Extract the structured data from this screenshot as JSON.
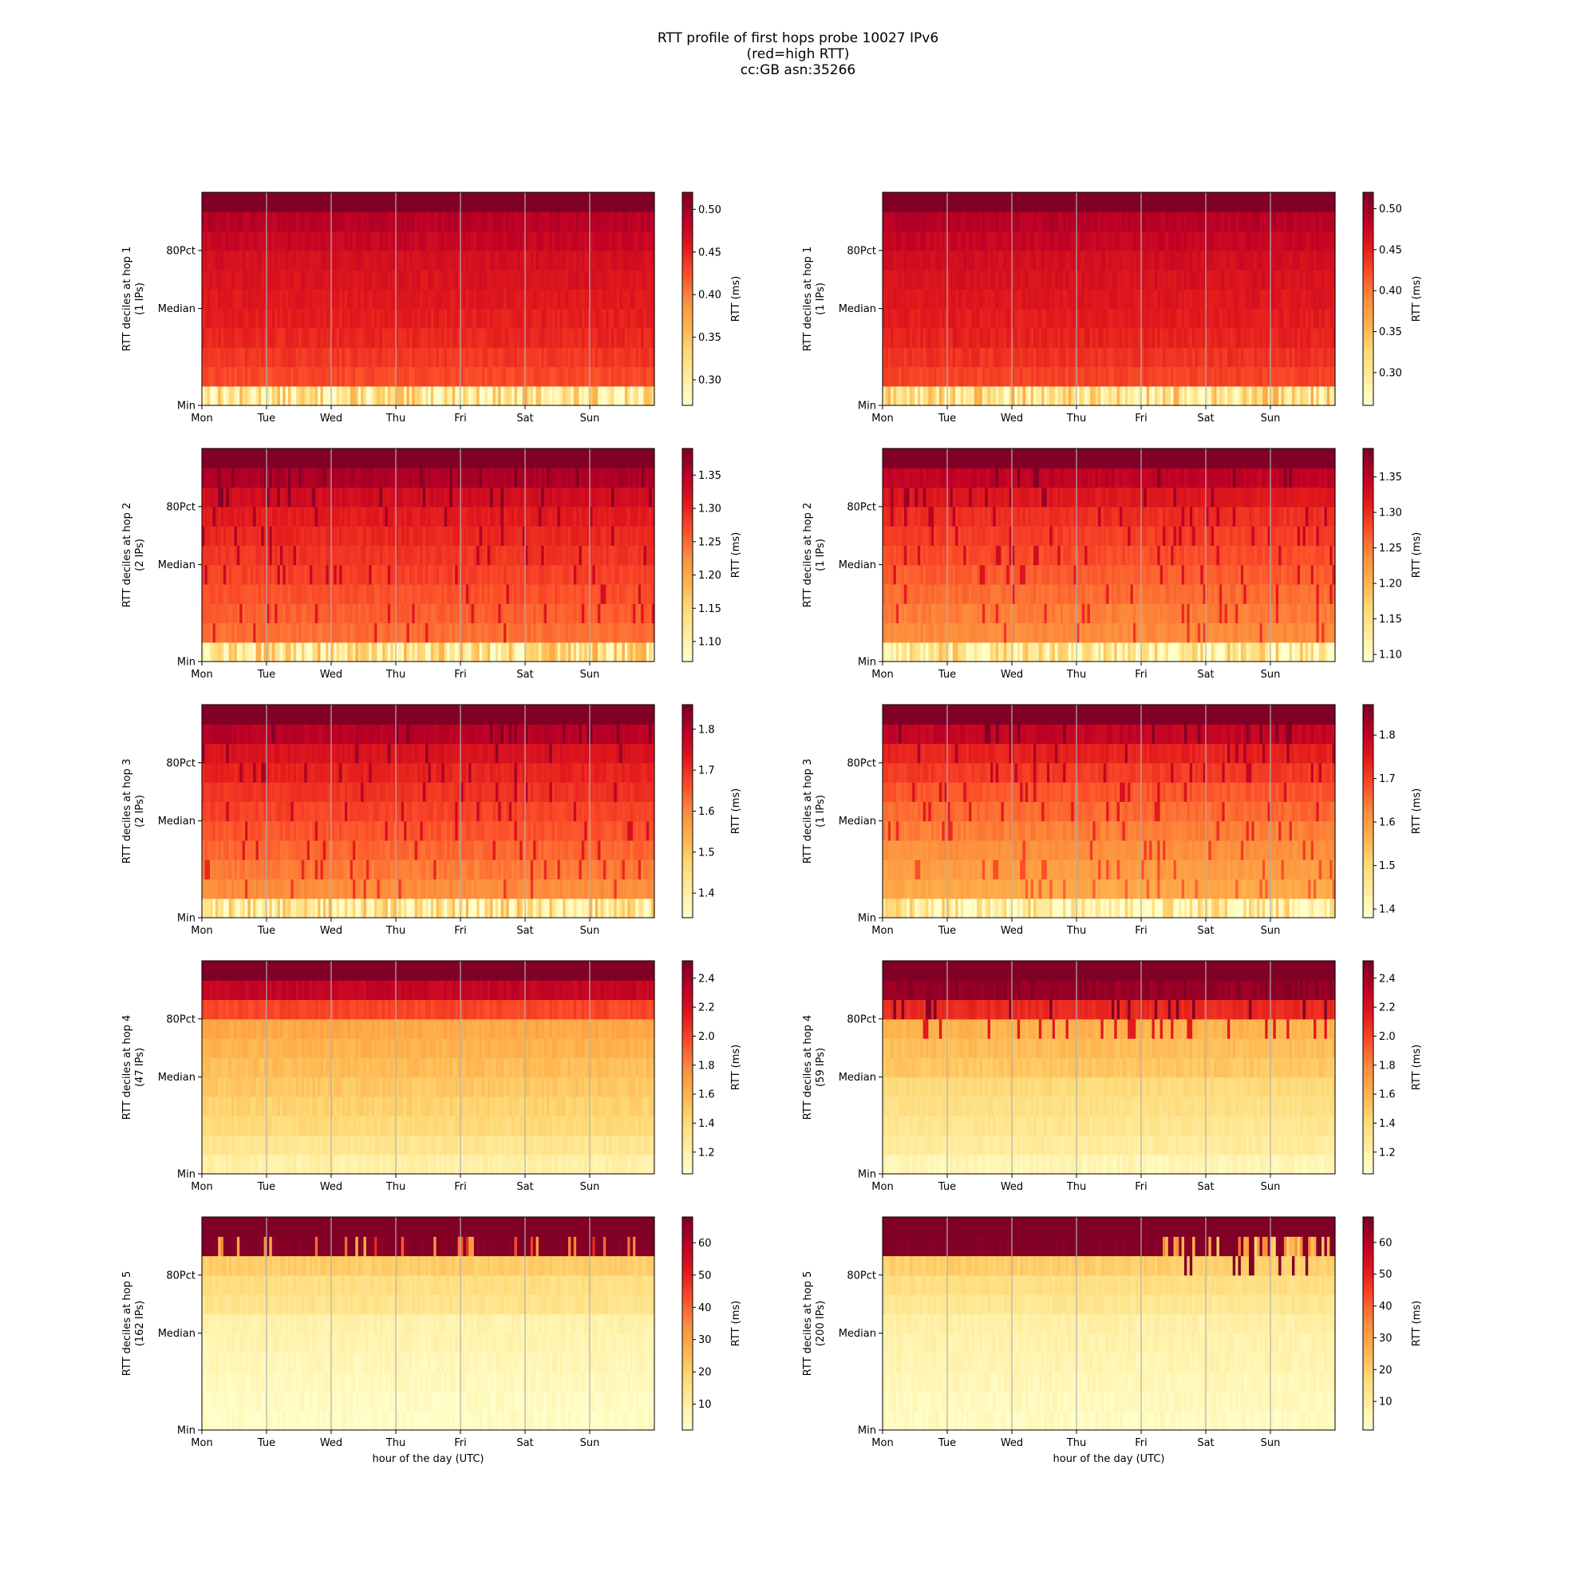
{
  "figure": {
    "title_lines": [
      "RTT profile of first hops probe 10027 IPv6",
      "(red=high RTT)",
      "cc:GB asn:35266"
    ]
  },
  "colormap": {
    "name": "YlOrRd",
    "stops": [
      "#ffffcc",
      "#ffeda0",
      "#fed976",
      "#feb24c",
      "#fd8d3c",
      "#fc4e2a",
      "#e31a1c",
      "#bd0026",
      "#800026"
    ]
  },
  "axes_common": {
    "x_tick_labels": [
      "Mon",
      "Tue",
      "Wed",
      "Thu",
      "Fri",
      "Sat",
      "Sun"
    ],
    "y_tick_labels": [
      "Min",
      "Median",
      "80Pct"
    ],
    "y_tick_deciles": [
      0,
      5,
      8
    ],
    "colorbar_label": "RTT (ms)",
    "xlabel": "hour of the day (UTC)",
    "deciles": 11,
    "hours": 168
  },
  "chart_data": [
    {
      "type": "heatmap",
      "hop": 1,
      "column": "left",
      "ylabel": "RTT deciles at hop 1",
      "ips_label": "(1 IPs)",
      "xlabel": "",
      "cbar_ticks": [
        "0.30",
        "0.35",
        "0.40",
        "0.45",
        "0.50"
      ],
      "clim": [
        0.27,
        0.52
      ],
      "pattern": "flat-low",
      "decile_values": [
        0.31,
        0.43,
        0.44,
        0.45,
        0.455,
        0.46,
        0.465,
        0.47,
        0.48,
        0.49,
        0.53
      ]
    },
    {
      "type": "heatmap",
      "hop": 1,
      "column": "right",
      "ylabel": "RTT deciles at hop 1",
      "ips_label": "(1 IPs)",
      "xlabel": "",
      "cbar_ticks": [
        "0.30",
        "0.35",
        "0.40",
        "0.45",
        "0.50"
      ],
      "clim": [
        0.26,
        0.52
      ],
      "pattern": "flat-low",
      "decile_values": [
        0.31,
        0.43,
        0.44,
        0.45,
        0.455,
        0.46,
        0.465,
        0.47,
        0.48,
        0.49,
        0.53
      ]
    },
    {
      "type": "heatmap",
      "hop": 2,
      "column": "left",
      "ylabel": "RTT deciles at hop 2",
      "ips_label": "(2 IPs)",
      "xlabel": "",
      "cbar_ticks": [
        "1.10",
        "1.15",
        "1.20",
        "1.25",
        "1.30",
        "1.35"
      ],
      "clim": [
        1.07,
        1.39
      ],
      "pattern": "gradient",
      "decile_values": [
        1.13,
        1.25,
        1.26,
        1.27,
        1.28,
        1.29,
        1.3,
        1.31,
        1.33,
        1.36,
        1.41
      ]
    },
    {
      "type": "heatmap",
      "hop": 2,
      "column": "right",
      "ylabel": "RTT deciles at hop 2",
      "ips_label": "(1 IPs)",
      "xlabel": "",
      "cbar_ticks": [
        "1.10",
        "1.15",
        "1.20",
        "1.25",
        "1.30",
        "1.35"
      ],
      "clim": [
        1.09,
        1.39
      ],
      "pattern": "gradient",
      "decile_values": [
        1.13,
        1.24,
        1.25,
        1.26,
        1.27,
        1.28,
        1.29,
        1.3,
        1.32,
        1.35,
        1.41
      ]
    },
    {
      "type": "heatmap",
      "hop": 3,
      "column": "left",
      "ylabel": "RTT deciles at hop 3",
      "ips_label": "(2 IPs)",
      "xlabel": "",
      "cbar_ticks": [
        "1.4",
        "1.5",
        "1.6",
        "1.7",
        "1.8"
      ],
      "clim": [
        1.34,
        1.86
      ],
      "pattern": "gradient",
      "decile_values": [
        1.42,
        1.6,
        1.62,
        1.64,
        1.66,
        1.68,
        1.7,
        1.72,
        1.75,
        1.8,
        1.9
      ]
    },
    {
      "type": "heatmap",
      "hop": 3,
      "column": "right",
      "ylabel": "RTT deciles at hop 3",
      "ips_label": "(1 IPs)",
      "xlabel": "",
      "cbar_ticks": [
        "1.4",
        "1.5",
        "1.6",
        "1.7",
        "1.8"
      ],
      "clim": [
        1.38,
        1.87
      ],
      "pattern": "gradient",
      "decile_values": [
        1.43,
        1.58,
        1.6,
        1.62,
        1.64,
        1.66,
        1.68,
        1.71,
        1.74,
        1.8,
        1.9
      ]
    },
    {
      "type": "heatmap",
      "hop": 4,
      "column": "left",
      "ylabel": "RTT deciles at hop 4",
      "ips_label": "(47 IPs)",
      "xlabel": "",
      "cbar_ticks": [
        "1.2",
        "1.4",
        "1.6",
        "1.8",
        "2.0",
        "2.2",
        "2.4"
      ],
      "clim": [
        1.05,
        2.52
      ],
      "pattern": "step",
      "decile_values": [
        1.2,
        1.3,
        1.4,
        1.45,
        1.5,
        1.55,
        1.6,
        1.65,
        2.0,
        2.3,
        2.6
      ]
    },
    {
      "type": "heatmap",
      "hop": 4,
      "column": "right",
      "ylabel": "RTT deciles at hop 4",
      "ips_label": "(59 IPs)",
      "xlabel": "",
      "cbar_ticks": [
        "1.2",
        "1.4",
        "1.6",
        "1.8",
        "2.0",
        "2.2",
        "2.4"
      ],
      "clim": [
        1.05,
        2.52
      ],
      "pattern": "step-spiky",
      "decile_values": [
        1.15,
        1.25,
        1.3,
        1.35,
        1.4,
        1.5,
        1.55,
        1.6,
        2.1,
        2.45,
        2.6
      ]
    },
    {
      "type": "heatmap",
      "hop": 5,
      "column": "left",
      "ylabel": "RTT deciles at hop 5",
      "ips_label": "(162 IPs)",
      "xlabel": "hour of the day (UTC)",
      "cbar_ticks": [
        "10",
        "20",
        "30",
        "40",
        "50",
        "60"
      ],
      "clim": [
        2,
        68
      ],
      "pattern": "step-high",
      "decile_values": [
        3,
        4,
        5,
        6,
        7,
        8,
        14,
        16,
        21,
        68,
        70
      ]
    },
    {
      "type": "heatmap",
      "hop": 5,
      "column": "right",
      "ylabel": "RTT deciles at hop 5",
      "ips_label": "(200 IPs)",
      "xlabel": "hour of the day (UTC)",
      "cbar_ticks": [
        "10",
        "20",
        "30",
        "40",
        "50",
        "60"
      ],
      "clim": [
        1,
        68
      ],
      "pattern": "step-high-blocks",
      "decile_values": [
        3,
        4,
        5,
        6,
        7,
        8,
        12,
        15,
        20,
        68,
        70
      ]
    }
  ]
}
